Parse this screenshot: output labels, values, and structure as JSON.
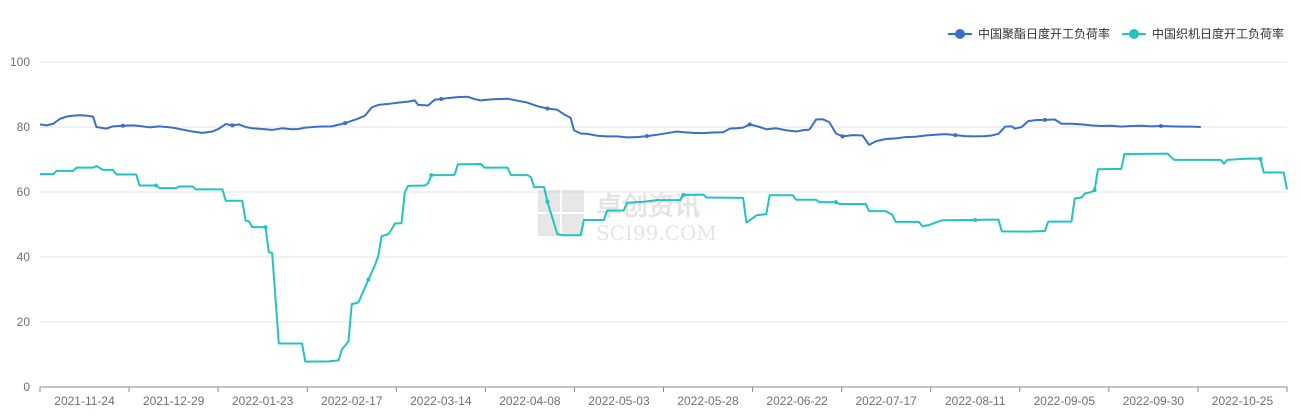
{
  "watermark": {
    "brand_cn": "卓创资讯",
    "brand_en": "SCI99.COM"
  },
  "chart_data": {
    "type": "line",
    "title": "",
    "xlabel": "",
    "ylabel": "",
    "ylim": [
      0,
      100
    ],
    "y_ticks": [
      0,
      20,
      40,
      60,
      80,
      100
    ],
    "grid": true,
    "legend_position": "top-right",
    "x_tick_labels": [
      "2021-11-24",
      "2021-12-29",
      "2022-01-23",
      "2022-02-17",
      "2022-03-14",
      "2022-04-08",
      "2022-05-03",
      "2022-05-28",
      "2022-06-22",
      "2022-07-17",
      "2022-08-11",
      "2022-09-05",
      "2022-09-30",
      "2022-10-25"
    ],
    "series": [
      {
        "name": "中国聚酯日度开工负荷率",
        "color": "#3a6fc9",
        "points": [
          [
            0,
            80.8
          ],
          [
            2,
            80.5
          ],
          [
            4,
            81
          ],
          [
            6,
            82.5
          ],
          [
            8,
            83.2
          ],
          [
            10,
            83.5
          ],
          [
            12,
            83.6
          ],
          [
            14,
            83.5
          ],
          [
            16,
            83.2
          ],
          [
            17,
            80
          ],
          [
            20,
            79.5
          ],
          [
            22,
            80.2
          ],
          [
            25,
            80.4
          ],
          [
            28,
            80.5
          ],
          [
            30,
            80.3
          ],
          [
            33,
            79.9
          ],
          [
            36,
            80.2
          ],
          [
            40,
            79.8
          ],
          [
            43,
            79.2
          ],
          [
            46,
            78.6
          ],
          [
            49,
            78.2
          ],
          [
            52,
            78.6
          ],
          [
            54,
            79.5
          ],
          [
            56,
            80.9
          ],
          [
            58,
            80.5
          ],
          [
            60,
            80.8
          ],
          [
            62,
            80
          ],
          [
            64,
            79.6
          ],
          [
            67,
            79.4
          ],
          [
            70,
            79.1
          ],
          [
            73,
            79.6
          ],
          [
            76,
            79.3
          ],
          [
            78,
            79.4
          ],
          [
            80,
            79.8
          ],
          [
            84,
            80.1
          ],
          [
            88,
            80.2
          ],
          [
            92,
            81.2
          ],
          [
            96,
            82.6
          ],
          [
            98,
            83.5
          ],
          [
            100,
            86
          ],
          [
            102,
            86.8
          ],
          [
            105,
            87.1
          ],
          [
            108,
            87.5
          ],
          [
            111,
            87.8
          ],
          [
            113,
            88.2
          ],
          [
            114,
            86.8
          ],
          [
            117,
            86.6
          ],
          [
            119,
            88.4
          ],
          [
            121,
            88.6
          ],
          [
            123,
            88.9
          ],
          [
            126,
            89.2
          ],
          [
            129,
            89.3
          ],
          [
            131,
            88.6
          ],
          [
            133,
            88.2
          ],
          [
            136,
            88.5
          ],
          [
            139,
            88.6
          ],
          [
            141,
            88.7
          ],
          [
            144,
            88.1
          ],
          [
            147,
            87.5
          ],
          [
            150,
            86.4
          ],
          [
            153,
            85.7
          ],
          [
            156,
            85.3
          ],
          [
            158,
            83.9
          ],
          [
            160,
            82.8
          ],
          [
            161,
            79
          ],
          [
            163,
            78
          ],
          [
            165,
            77.9
          ],
          [
            168,
            77.3
          ],
          [
            171,
            77.1
          ],
          [
            174,
            77.1
          ],
          [
            177,
            76.8
          ],
          [
            180,
            76.9
          ],
          [
            183,
            77.2
          ],
          [
            186,
            77.6
          ],
          [
            189,
            78.1
          ],
          [
            192,
            78.6
          ],
          [
            194,
            78.4
          ],
          [
            197,
            78.2
          ],
          [
            200,
            78.1
          ],
          [
            203,
            78.3
          ],
          [
            206,
            78.4
          ],
          [
            208,
            79.5
          ],
          [
            210,
            79.6
          ],
          [
            212,
            79.8
          ],
          [
            214,
            80.8
          ],
          [
            217,
            80
          ],
          [
            219,
            79.3
          ],
          [
            222,
            79.6
          ],
          [
            225,
            79
          ],
          [
            228,
            78.6
          ],
          [
            230,
            79
          ],
          [
            232,
            79.2
          ],
          [
            234,
            82.3
          ],
          [
            236,
            82.4
          ],
          [
            238,
            81.5
          ],
          [
            240,
            78
          ],
          [
            242,
            77.1
          ],
          [
            245,
            77.5
          ],
          [
            248,
            77.4
          ],
          [
            250,
            74.5
          ],
          [
            252,
            75.6
          ],
          [
            255,
            76.3
          ],
          [
            258,
            76.5
          ],
          [
            261,
            76.9
          ],
          [
            264,
            77
          ],
          [
            267,
            77.4
          ],
          [
            270,
            77.6
          ],
          [
            273,
            77.8
          ],
          [
            276,
            77.5
          ],
          [
            279,
            77.2
          ],
          [
            282,
            77.1
          ],
          [
            285,
            77.2
          ],
          [
            287,
            77.4
          ],
          [
            289,
            77.9
          ],
          [
            291,
            80.1
          ],
          [
            293,
            80.2
          ],
          [
            294,
            79.5
          ],
          [
            296,
            80
          ],
          [
            298,
            81.8
          ],
          [
            300,
            82.1
          ],
          [
            303,
            82.2
          ],
          [
            306,
            82.3
          ],
          [
            308,
            81
          ],
          [
            311,
            81
          ],
          [
            314,
            80.8
          ],
          [
            317,
            80.5
          ],
          [
            320,
            80.3
          ],
          [
            323,
            80.4
          ],
          [
            326,
            80.1
          ],
          [
            329,
            80.3
          ],
          [
            332,
            80.4
          ],
          [
            335,
            80.2
          ],
          [
            338,
            80.3
          ],
          [
            341,
            80.2
          ],
          [
            344,
            80.1
          ],
          [
            347,
            80.1
          ],
          [
            350,
            80
          ]
        ]
      },
      {
        "name": "中国织机日度开工负荷率",
        "color": "#22c3c0",
        "points": [
          [
            0,
            65.5
          ],
          [
            4,
            65.5
          ],
          [
            5,
            66.5
          ],
          [
            10,
            66.5
          ],
          [
            11,
            67.5
          ],
          [
            16,
            67.5
          ],
          [
            17,
            68
          ],
          [
            19,
            66.8
          ],
          [
            22,
            66.8
          ],
          [
            23,
            65.4
          ],
          [
            29,
            65.4
          ],
          [
            30,
            62
          ],
          [
            35,
            62
          ],
          [
            36,
            61.2
          ],
          [
            41,
            61.2
          ],
          [
            42,
            61.7
          ],
          [
            46,
            61.7
          ],
          [
            47,
            60.8
          ],
          [
            55,
            60.8
          ],
          [
            56,
            57.3
          ],
          [
            61,
            57.3
          ],
          [
            62,
            51.2
          ],
          [
            63,
            51
          ],
          [
            64,
            49.2
          ],
          [
            68,
            49.2
          ],
          [
            69,
            41.5
          ],
          [
            70,
            41.2
          ],
          [
            72,
            13.4
          ],
          [
            79,
            13.4
          ],
          [
            80,
            7.8
          ],
          [
            87,
            7.9
          ],
          [
            90,
            8.2
          ],
          [
            91,
            11.5
          ],
          [
            93,
            14
          ],
          [
            94,
            25.5
          ],
          [
            96,
            26
          ],
          [
            99,
            33
          ],
          [
            101,
            37.5
          ],
          [
            102,
            40.3
          ],
          [
            103,
            46.4
          ],
          [
            105,
            47
          ],
          [
            106,
            48.5
          ],
          [
            107,
            50.3
          ],
          [
            109,
            50.4
          ],
          [
            110,
            59.9
          ],
          [
            111,
            61.9
          ],
          [
            116,
            62
          ],
          [
            117,
            62.6
          ],
          [
            118,
            65.2
          ],
          [
            124,
            65.2
          ],
          [
            125,
            65.3
          ],
          [
            126,
            68.5
          ],
          [
            133,
            68.6
          ],
          [
            134,
            67.5
          ],
          [
            141,
            67.5
          ],
          [
            142,
            65.2
          ],
          [
            147,
            65.2
          ],
          [
            148,
            64.6
          ],
          [
            149,
            61.5
          ],
          [
            152,
            61.5
          ],
          [
            153,
            57
          ],
          [
            156,
            47
          ],
          [
            158,
            46.7
          ],
          [
            163,
            46.7
          ],
          [
            164,
            51.4
          ],
          [
            170,
            51.4
          ],
          [
            171,
            54.3
          ],
          [
            176,
            54.3
          ],
          [
            177,
            56.7
          ],
          [
            182,
            57
          ],
          [
            186,
            57.5
          ],
          [
            193,
            57.5
          ],
          [
            194,
            59.1
          ],
          [
            200,
            59.2
          ],
          [
            201,
            58.3
          ],
          [
            212,
            58.2
          ],
          [
            213,
            50.6
          ],
          [
            216,
            52.8
          ],
          [
            219,
            53.2
          ],
          [
            220,
            59
          ],
          [
            227,
            59
          ],
          [
            228,
            57.6
          ],
          [
            234,
            57.6
          ],
          [
            235,
            56.9
          ],
          [
            240,
            56.9
          ],
          [
            241,
            56.3
          ],
          [
            249,
            56.3
          ],
          [
            250,
            54.1
          ],
          [
            255,
            54.1
          ],
          [
            257,
            53
          ],
          [
            258,
            50.8
          ],
          [
            265,
            50.8
          ],
          [
            266,
            49.5
          ],
          [
            268,
            49.8
          ],
          [
            270,
            50.6
          ],
          [
            272,
            51.3
          ],
          [
            282,
            51.4
          ],
          [
            286,
            51.5
          ],
          [
            289,
            51.5
          ],
          [
            290,
            47.9
          ],
          [
            298,
            47.8
          ],
          [
            303,
            48
          ],
          [
            304,
            50.9
          ],
          [
            311,
            50.9
          ],
          [
            312,
            58
          ],
          [
            314,
            58.3
          ],
          [
            315,
            59.5
          ],
          [
            317,
            60
          ],
          [
            318,
            60.6
          ],
          [
            319,
            67
          ],
          [
            326,
            67.1
          ],
          [
            327,
            71.7
          ],
          [
            340,
            71.8
          ],
          [
            341,
            70.8
          ],
          [
            342,
            69.9
          ],
          [
            356,
            69.9
          ],
          [
            357,
            68.7
          ],
          [
            358,
            69.9
          ],
          [
            363,
            70.2
          ],
          [
            366,
            70.3
          ],
          [
            368,
            70.2
          ],
          [
            369,
            66
          ],
          [
            375,
            66
          ],
          [
            376,
            60.8
          ]
        ]
      }
    ]
  }
}
